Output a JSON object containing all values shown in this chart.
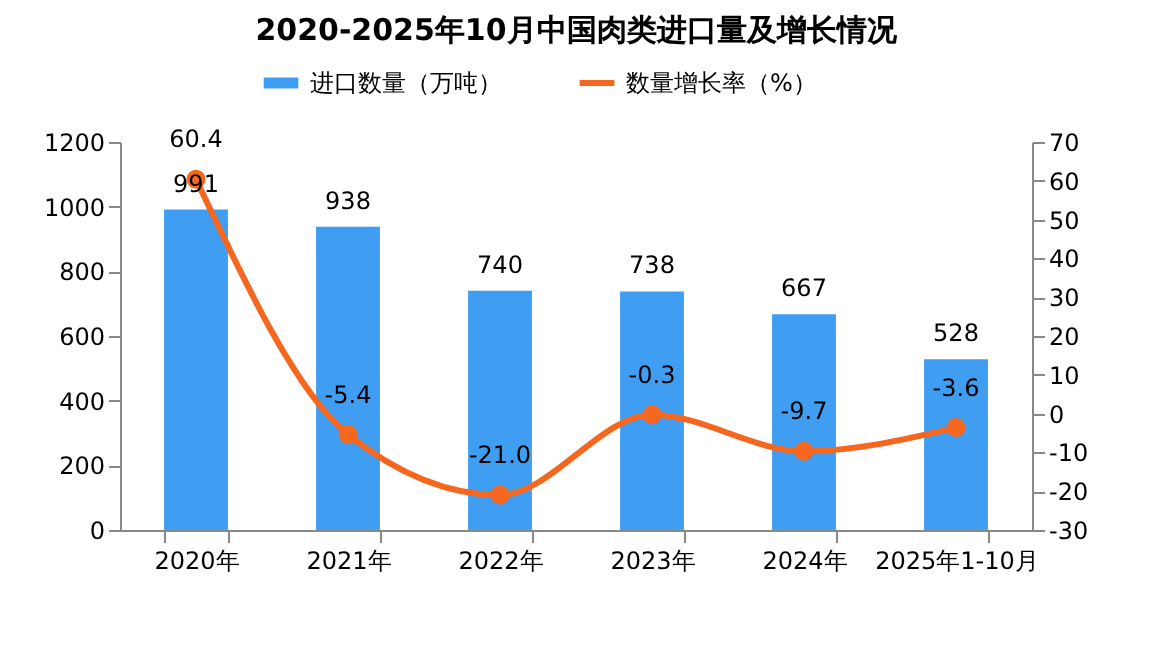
{
  "chart_data": {
    "type": "bar",
    "title": "2020-2025年10月中国肉类进口量及增长情况",
    "categories": [
      "2020年",
      "2021年",
      "2022年",
      "2023年",
      "2024年",
      "2025年1-10月"
    ],
    "series": [
      {
        "name": "进口数量（万吨）",
        "color": "#3f9ef2",
        "values": [
          991,
          938,
          740,
          738,
          667,
          528
        ],
        "value_labels": [
          "991",
          "938",
          "740",
          "738",
          "667",
          "528"
        ]
      },
      {
        "name": "数量增长率（%）",
        "type": "line",
        "axis": "y2",
        "color": "#f5661e",
        "values": [
          60.4,
          -5.4,
          -21.0,
          -0.3,
          -9.7,
          -3.6
        ],
        "value_labels": [
          "60.4",
          "-5.4",
          "-21.0",
          "-0.3",
          "-9.7",
          "-3.6"
        ]
      }
    ],
    "ylim": [
      0,
      1200
    ],
    "yticks": [
      0,
      200,
      400,
      600,
      800,
      1000,
      1200
    ],
    "y2lim": [
      -30,
      70
    ],
    "y2ticks": [
      -30,
      -20,
      -10,
      0,
      10,
      20,
      30,
      40,
      50,
      60,
      70
    ],
    "legend": "top",
    "marker": "circle",
    "line_style": "solid"
  }
}
